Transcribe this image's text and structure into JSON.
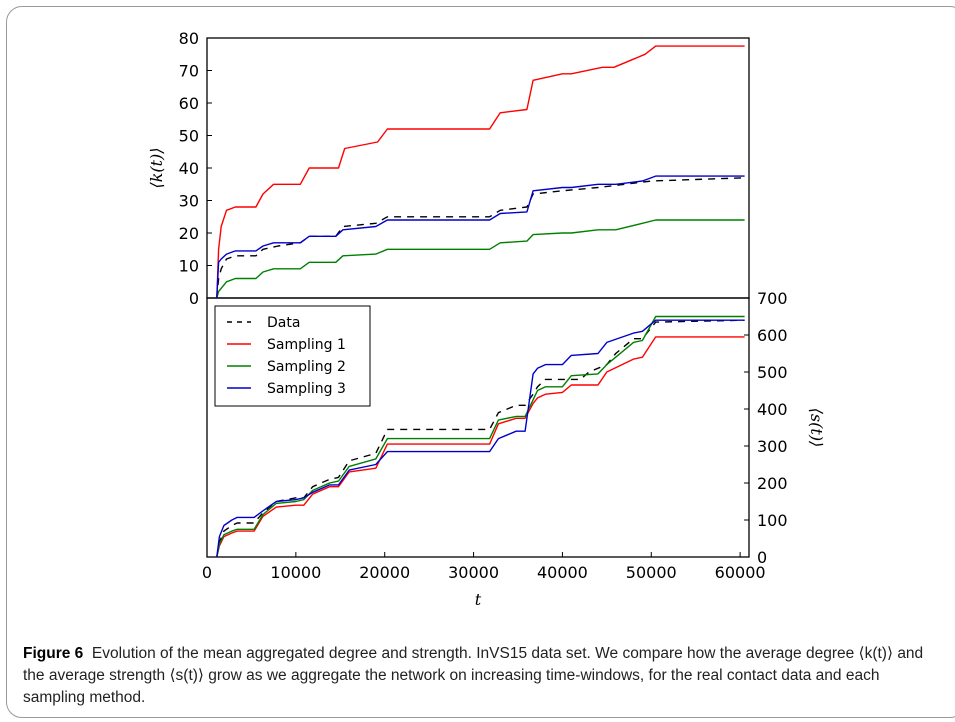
{
  "caption": {
    "label": "Figure 6",
    "text": "Evolution of the mean aggregated degree and strength. InVS15 data set. We compare how the average degree ⟨k(t)⟩ and the average strength ⟨s(t)⟩ grow as we aggregate the network on increasing time-windows, for the real contact data and each sampling method."
  },
  "chart_data": [
    {
      "type": "line",
      "panel": "top",
      "xlabel": "",
      "ylabel": "⟨k(t)⟩",
      "xlim": [
        0,
        61000
      ],
      "ylim": [
        0,
        80
      ],
      "yticks": [
        "0",
        "10",
        "20",
        "30",
        "40",
        "50",
        "60",
        "70",
        "80"
      ],
      "series": [
        {
          "name": "Data",
          "color": "#000000",
          "dash": "7,6",
          "x": [
            1100,
            1300,
            1600,
            2200,
            3200,
            5500,
            6300,
            8000,
            10500,
            11500,
            14500,
            15300,
            19000,
            20300,
            31800,
            33000,
            36000,
            36700,
            40000,
            44000,
            47000,
            50000,
            60500
          ],
          "y": [
            0,
            6,
            9,
            12,
            13,
            13,
            15,
            16,
            17,
            19,
            19,
            22,
            23,
            25,
            25,
            27,
            28,
            32,
            33,
            34,
            35,
            36,
            37
          ]
        },
        {
          "name": "Sampling 1",
          "color": "#ff0000",
          "x": [
            1100,
            1300,
            1600,
            2200,
            3200,
            5500,
            6300,
            7500,
            10500,
            11500,
            14800,
            15500,
            19200,
            20300,
            31800,
            33000,
            36000,
            36700,
            40000,
            41000,
            44500,
            45800,
            49300,
            50500,
            60500
          ],
          "y": [
            0,
            15,
            22,
            27,
            28,
            28,
            32,
            35,
            35,
            40,
            40,
            46,
            48,
            52,
            52,
            57,
            58,
            67,
            69,
            69,
            71,
            71,
            75,
            77.5,
            77.5
          ]
        },
        {
          "name": "Sampling 2",
          "color": "#008000",
          "x": [
            1100,
            1300,
            1600,
            2200,
            3200,
            5500,
            6300,
            7500,
            10500,
            11500,
            14500,
            15300,
            19000,
            20300,
            31800,
            33000,
            36000,
            36700,
            40000,
            41000,
            44000,
            46000,
            49000,
            50500,
            60500
          ],
          "y": [
            0,
            2,
            3,
            5,
            6,
            6,
            8,
            9,
            9,
            11,
            11,
            13,
            13.5,
            15,
            15,
            17,
            17.5,
            19.5,
            20,
            20,
            21,
            21,
            23,
            24,
            24
          ]
        },
        {
          "name": "Sampling 3",
          "color": "#0000cc",
          "x": [
            1100,
            1300,
            1600,
            2200,
            3200,
            5500,
            6300,
            7500,
            10500,
            11500,
            14500,
            15300,
            19000,
            20300,
            31800,
            33000,
            36000,
            36700,
            40000,
            41000,
            44000,
            46000,
            49000,
            50500,
            60500
          ],
          "y": [
            0,
            11,
            12,
            13.5,
            14.5,
            14.5,
            16,
            17,
            17,
            19,
            19,
            21,
            22,
            24,
            24,
            26,
            26.5,
            33,
            34,
            34,
            35,
            35,
            36,
            37.5,
            37.5
          ]
        }
      ]
    },
    {
      "type": "line",
      "panel": "bottom",
      "xlabel": "t",
      "ylabel": "⟨s(t)⟩",
      "xlim": [
        0,
        61000
      ],
      "ylim": [
        0,
        700
      ],
      "xticks": [
        "0",
        "10000",
        "20000",
        "30000",
        "40000",
        "50000",
        "60000"
      ],
      "yticks": [
        "0",
        "100",
        "200",
        "300",
        "400",
        "500",
        "600",
        "700"
      ],
      "legend": {
        "position": "upper-left",
        "entries": [
          "Data",
          "Sampling 1",
          "Sampling 2",
          "Sampling 3"
        ]
      },
      "series": [
        {
          "name": "Data",
          "color": "#000000",
          "dash": "7,6",
          "x": [
            1100,
            1400,
            1900,
            2800,
            3400,
            5300,
            6300,
            7800,
            10000,
            10900,
            11900,
            13800,
            14800,
            16000,
            19000,
            20300,
            31800,
            32800,
            34800,
            35800,
            36700,
            37200,
            38100,
            42000,
            43000,
            45000,
            46000,
            48000,
            49000,
            50500,
            60500
          ],
          "y": [
            0,
            40,
            70,
            85,
            92,
            92,
            120,
            150,
            160,
            160,
            190,
            210,
            215,
            260,
            280,
            345,
            345,
            390,
            410,
            410,
            440,
            460,
            480,
            480,
            500,
            520,
            550,
            590,
            590,
            635,
            640
          ]
        },
        {
          "name": "Sampling 1",
          "color": "#ff0000",
          "x": [
            1100,
            1400,
            1900,
            2800,
            3400,
            5300,
            6300,
            7800,
            10000,
            10900,
            11900,
            13800,
            14800,
            16000,
            19000,
            20300,
            31800,
            32800,
            34800,
            35800,
            36700,
            37200,
            38100,
            40000,
            41000,
            44000,
            45000,
            48000,
            49000,
            50500,
            60500
          ],
          "y": [
            0,
            30,
            55,
            65,
            70,
            70,
            110,
            135,
            140,
            140,
            170,
            190,
            190,
            230,
            240,
            305,
            305,
            360,
            375,
            375,
            415,
            430,
            440,
            445,
            465,
            465,
            500,
            535,
            540,
            595,
            595
          ]
        },
        {
          "name": "Sampling 2",
          "color": "#008000",
          "x": [
            1100,
            1400,
            1900,
            2800,
            3400,
            5300,
            6300,
            7800,
            10000,
            10900,
            11900,
            13800,
            14800,
            16000,
            19000,
            20300,
            31800,
            32800,
            34800,
            35800,
            36700,
            37200,
            38100,
            40000,
            41000,
            44000,
            45000,
            48000,
            49000,
            50500,
            60500
          ],
          "y": [
            0,
            35,
            60,
            70,
            75,
            75,
            115,
            145,
            150,
            155,
            180,
            200,
            205,
            245,
            265,
            320,
            320,
            370,
            380,
            380,
            425,
            450,
            460,
            460,
            490,
            495,
            520,
            580,
            585,
            650,
            650
          ]
        },
        {
          "name": "Sampling 3",
          "color": "#0000cc",
          "x": [
            1100,
            1400,
            1900,
            2800,
            3400,
            5300,
            6300,
            7800,
            10000,
            10900,
            11900,
            13800,
            14800,
            16000,
            19000,
            20300,
            31800,
            32800,
            34800,
            35800,
            36700,
            37200,
            38100,
            40000,
            41000,
            44000,
            45000,
            48000,
            49000,
            50500,
            60500
          ],
          "y": [
            0,
            55,
            85,
            100,
            107,
            107,
            125,
            150,
            155,
            160,
            175,
            195,
            195,
            235,
            250,
            285,
            285,
            320,
            340,
            340,
            495,
            510,
            520,
            520,
            545,
            550,
            580,
            605,
            610,
            640,
            640
          ]
        }
      ]
    }
  ]
}
